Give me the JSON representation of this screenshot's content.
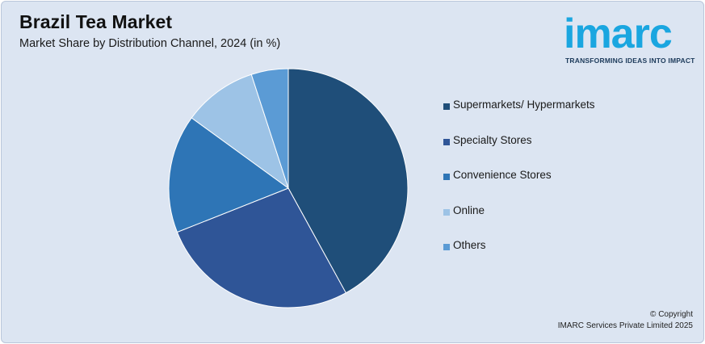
{
  "header": {
    "title": "Brazil Tea Market",
    "subtitle": "Market Share by Distribution Channel, 2024 (in %)"
  },
  "logo": {
    "wordmark": "imarc",
    "tagline": "TRANSFORMING IDEAS INTO IMPACT",
    "color": "#1aa6e0"
  },
  "chart_data": {
    "type": "pie",
    "title": "Brazil Tea Market",
    "subtitle": "Market Share by Distribution Channel, 2024 (in %)",
    "categories": [
      "Supermarkets/ Hypermarkets",
      "Specialty Stores",
      "Convenience Stores",
      "Online",
      "Others"
    ],
    "values": [
      42,
      27,
      16,
      10,
      5
    ],
    "colors": [
      "#1f4e79",
      "#2f5597",
      "#2e75b6",
      "#9dc3e6",
      "#5b9bd5"
    ],
    "legend_position": "right"
  },
  "footer": {
    "copyright_line1": "© Copyright",
    "copyright_line2": "IMARC Services Private Limited 2025"
  }
}
